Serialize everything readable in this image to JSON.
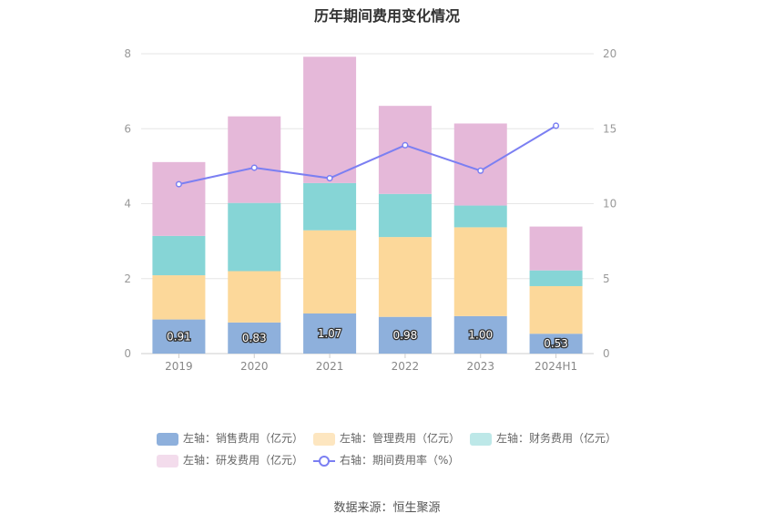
{
  "title": "历年期间费用变化情况",
  "source": "数据来源：恒生聚源",
  "colors": {
    "sales": "#8eb0dc",
    "admin": "#fcd89a",
    "finance": "#86d5d6",
    "rd": "#e5b8d9",
    "rate": "#7b7ff2"
  },
  "legend": [
    {
      "key": "sales",
      "label": "左轴：销售费用（亿元）"
    },
    {
      "key": "admin",
      "label": "左轴：管理费用（亿元）"
    },
    {
      "key": "finance",
      "label": "左轴：财务费用（亿元）"
    },
    {
      "key": "rd",
      "label": "左轴：研发费用（亿元）"
    },
    {
      "key": "rate",
      "label": "右轴：期间费用率（%）"
    }
  ],
  "chart_data": {
    "type": "bar",
    "stacked": true,
    "title": "历年期间费用变化情况",
    "categories": [
      "2019",
      "2020",
      "2021",
      "2022",
      "2023",
      "2024H1"
    ],
    "y_left": {
      "ticks": [
        "0",
        "2",
        "4",
        "6",
        "8"
      ],
      "ylim": [
        0,
        8
      ]
    },
    "y_right": {
      "ticks": [
        "0",
        "5",
        "10",
        "15",
        "20"
      ],
      "ylim": [
        0,
        20
      ]
    },
    "series": [
      {
        "key": "sales",
        "name": "左轴：销售费用（亿元）",
        "axis": "left",
        "values": [
          0.91,
          0.83,
          1.07,
          0.98,
          1.0,
          0.53
        ],
        "labels": [
          "0.91",
          "0.83",
          "1.07",
          "0.98",
          "1.00",
          "0.53"
        ]
      },
      {
        "key": "admin",
        "name": "左轴：管理费用（亿元）",
        "axis": "left",
        "values": [
          1.18,
          1.37,
          2.22,
          2.13,
          2.37,
          1.27
        ]
      },
      {
        "key": "finance",
        "name": "左轴：财务费用（亿元）",
        "axis": "left",
        "values": [
          1.05,
          1.82,
          1.26,
          1.15,
          0.58,
          0.42
        ]
      },
      {
        "key": "rd",
        "name": "左轴：研发费用（亿元）",
        "axis": "left",
        "values": [
          1.97,
          2.31,
          3.37,
          2.35,
          2.19,
          1.17
        ]
      },
      {
        "key": "rate",
        "name": "右轴：期间费用率（%）",
        "axis": "right",
        "type": "line",
        "values": [
          11.3,
          12.4,
          11.7,
          13.9,
          12.2,
          15.2
        ]
      }
    ]
  }
}
